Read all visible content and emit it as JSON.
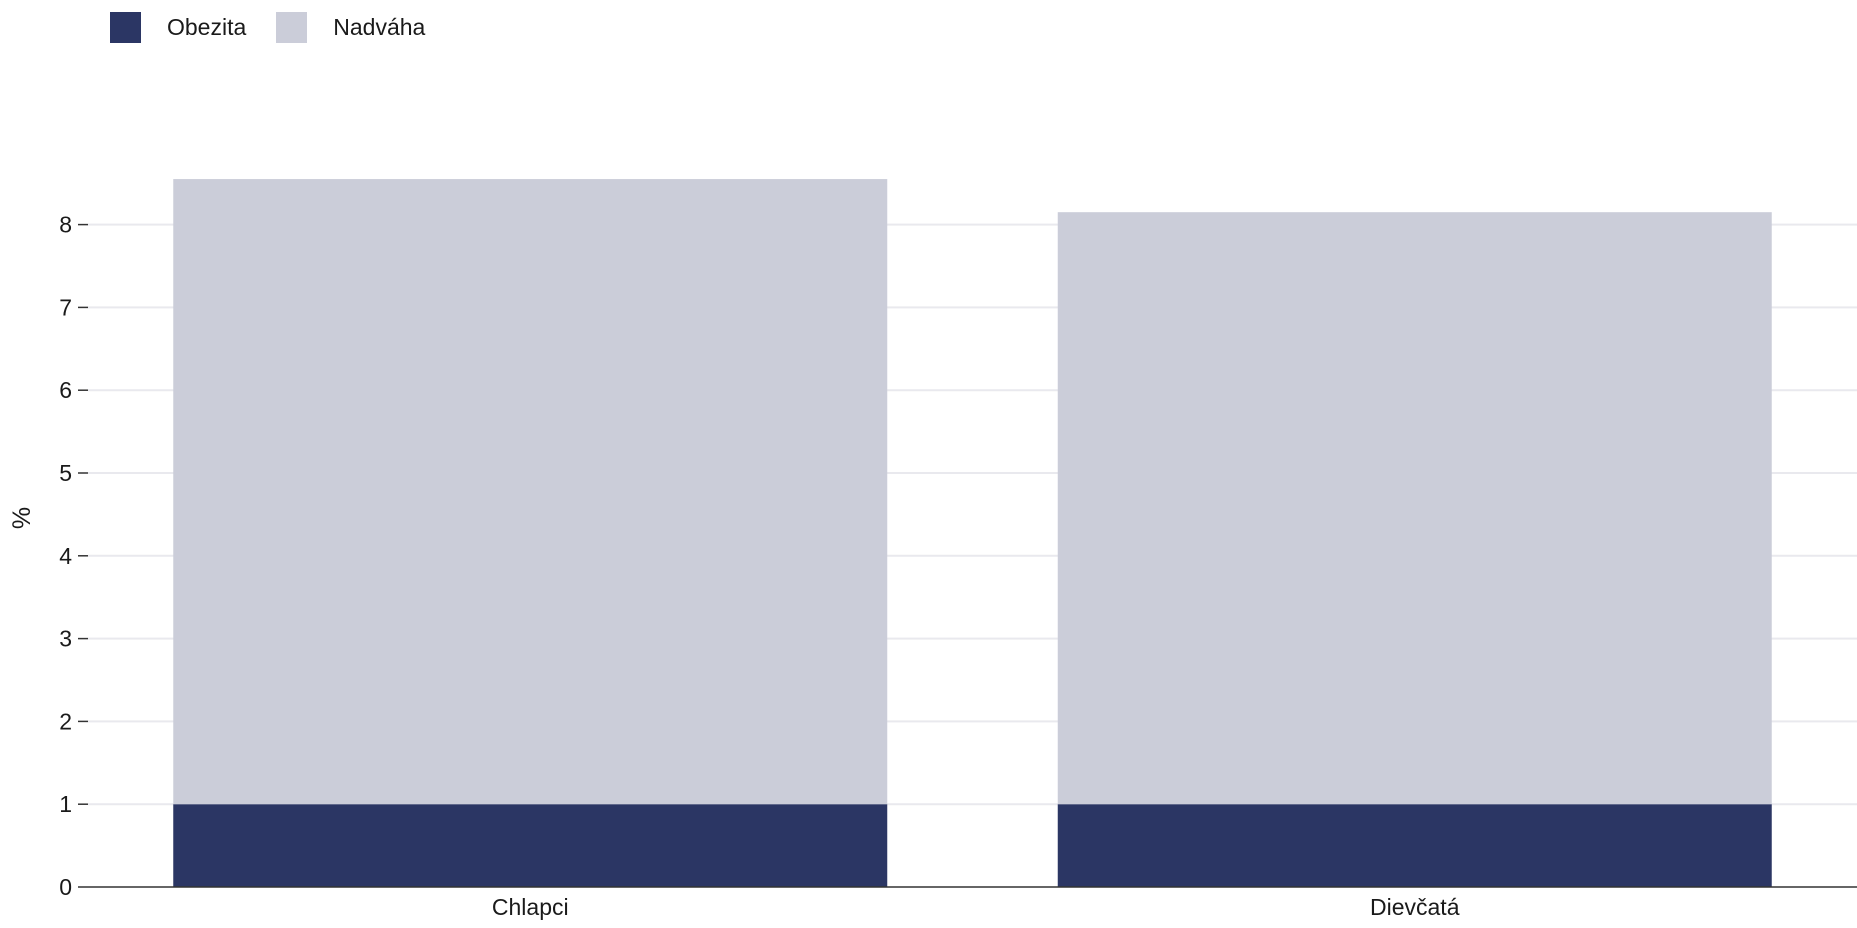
{
  "chart_data": {
    "type": "bar",
    "stacked": true,
    "categories": [
      "Chlapci",
      "Dievčatá"
    ],
    "series": [
      {
        "name": "Obezita",
        "values": [
          1.0,
          1.0
        ],
        "color": "#2b3664"
      },
      {
        "name": "Nadváha",
        "values": [
          7.55,
          7.15
        ],
        "color": "#cbcdd9"
      }
    ],
    "ylabel": "%",
    "xlabel": "",
    "ylim": [
      0,
      9
    ],
    "yticks": [
      0,
      1,
      2,
      3,
      4,
      5,
      6,
      7,
      8
    ],
    "grid": true,
    "legend_position": "top-left"
  }
}
